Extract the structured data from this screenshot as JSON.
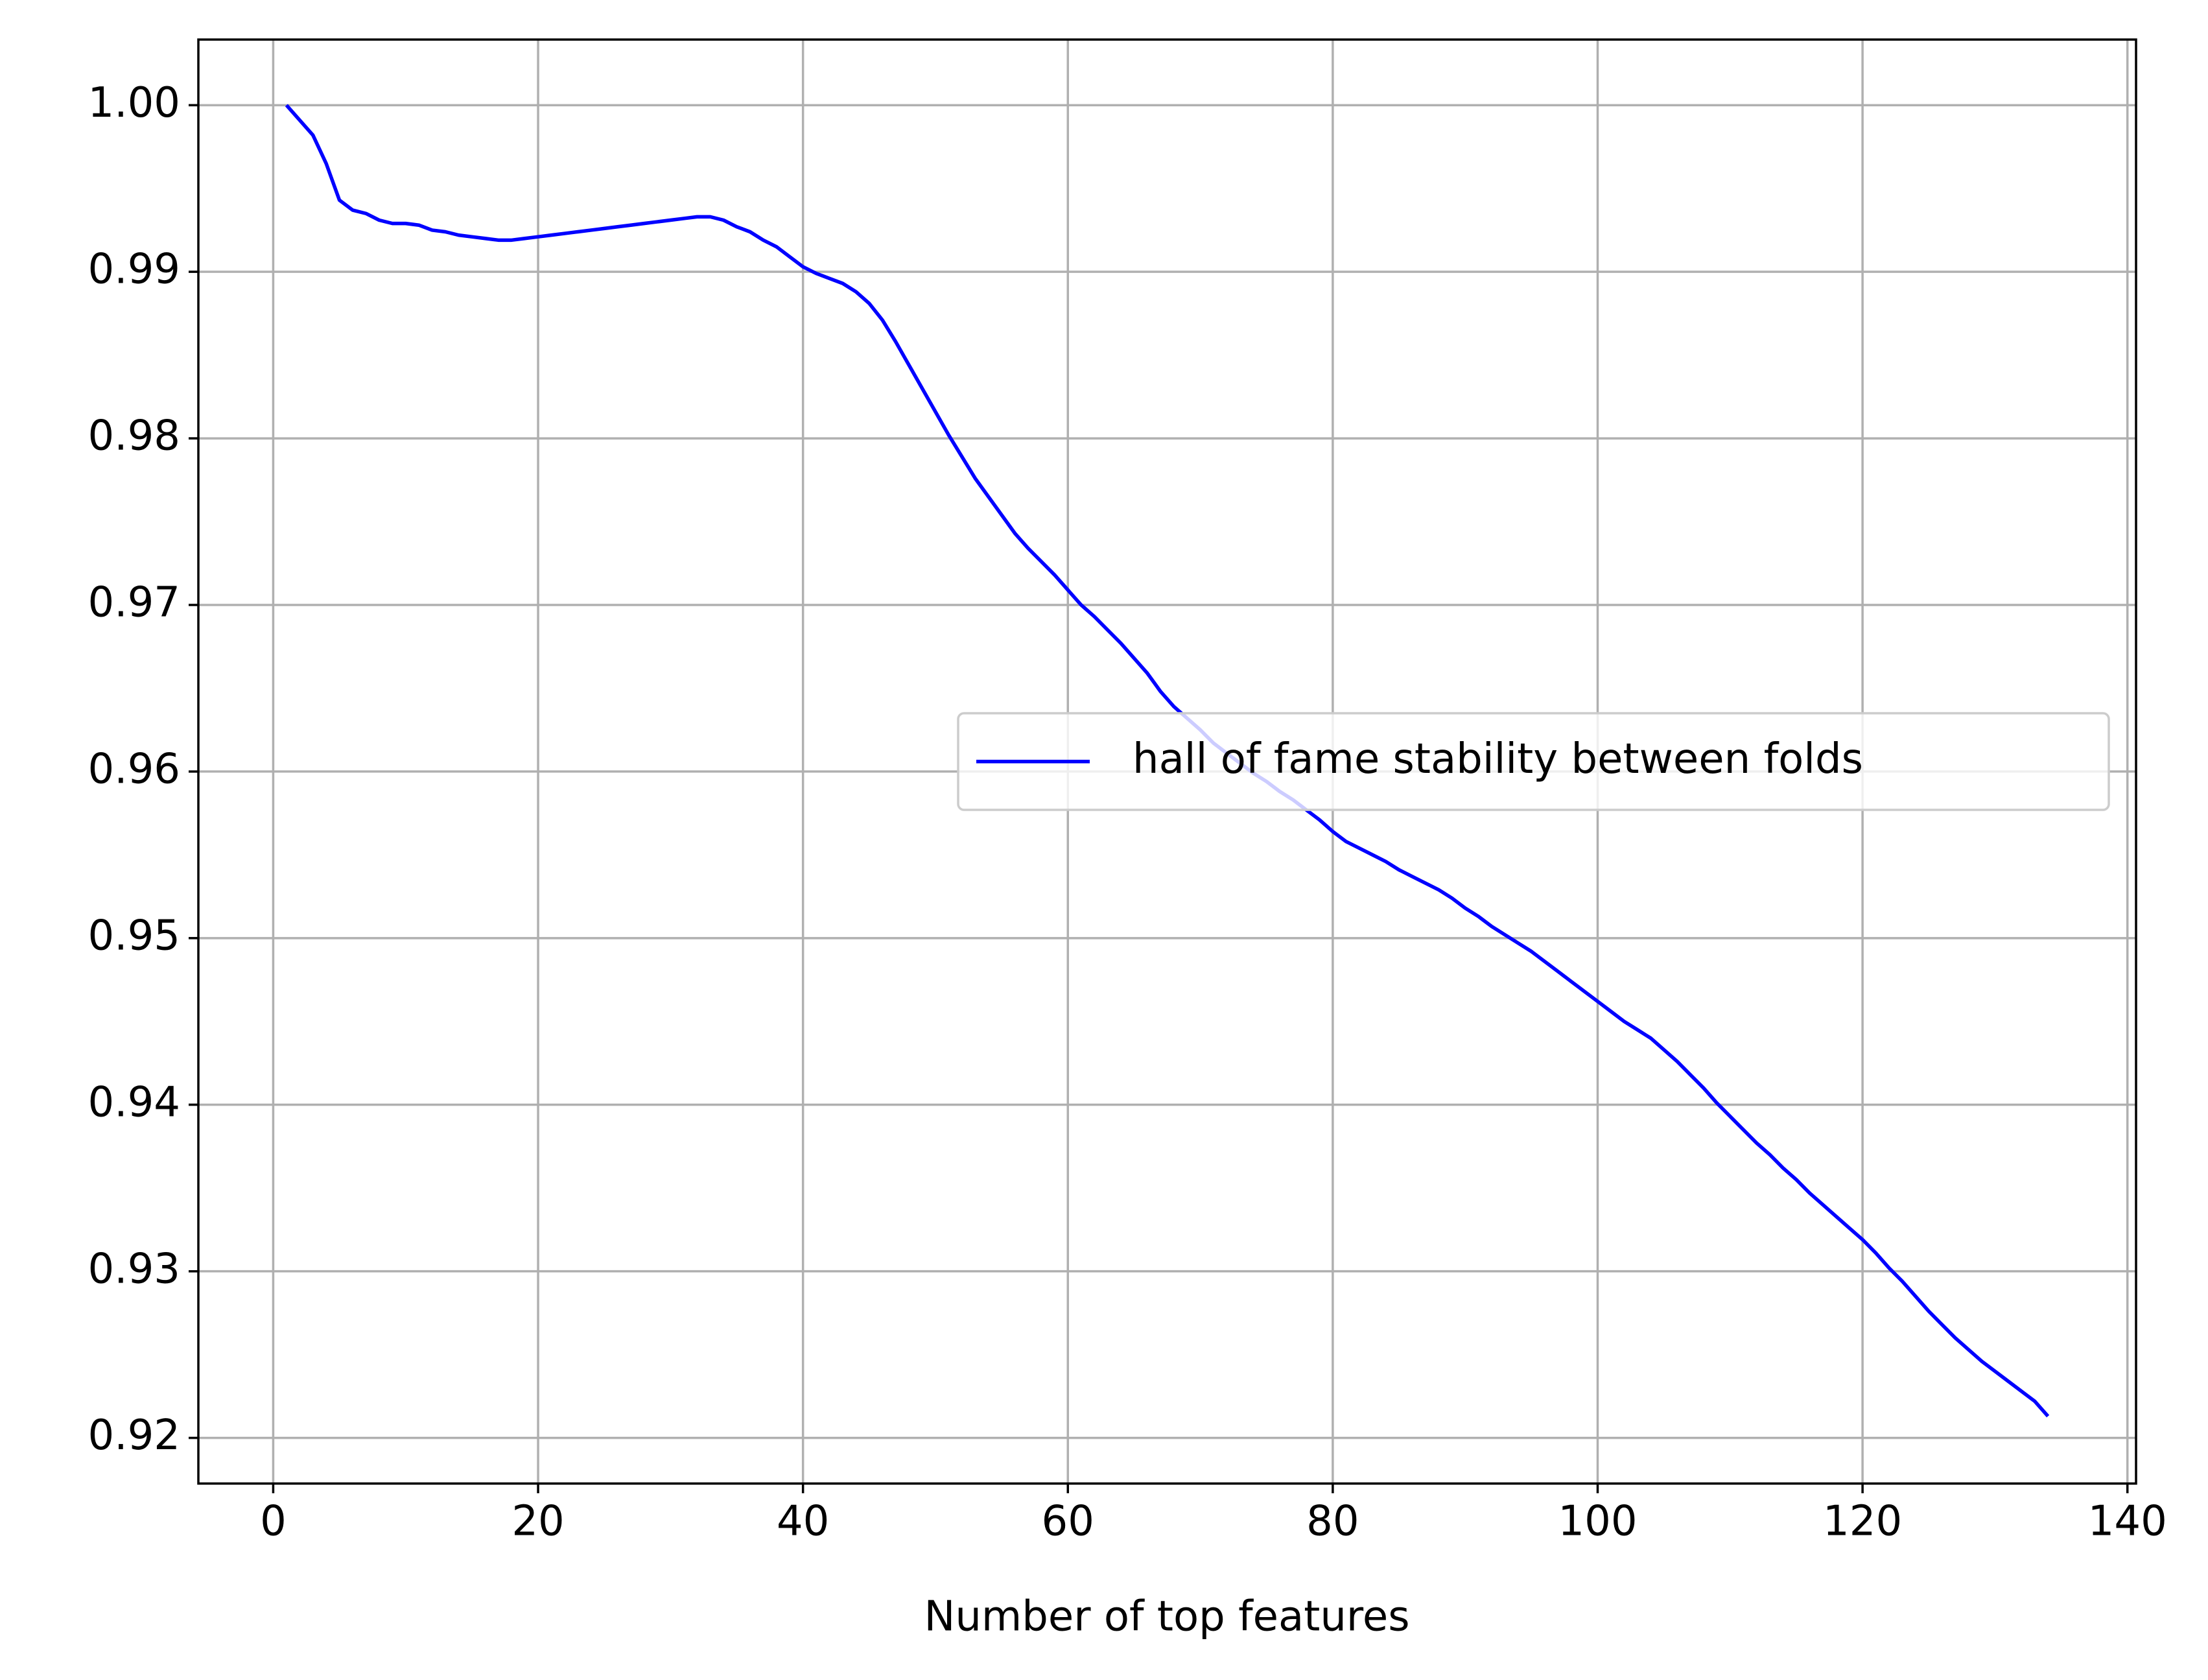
{
  "chart_data": {
    "type": "line",
    "xlabel": "Number of top features",
    "x": [
      1,
      2,
      3,
      4,
      5,
      6,
      7,
      8,
      9,
      10,
      11,
      12,
      13,
      14,
      15,
      16,
      17,
      18,
      19,
      20,
      21,
      22,
      23,
      24,
      25,
      26,
      27,
      28,
      29,
      30,
      31,
      32,
      33,
      34,
      35,
      36,
      37,
      38,
      39,
      40,
      41,
      42,
      43,
      44,
      45,
      46,
      47,
      48,
      49,
      50,
      51,
      52,
      53,
      54,
      55,
      56,
      57,
      58,
      59,
      60,
      61,
      62,
      63,
      64,
      65,
      66,
      67,
      68,
      69,
      70,
      71,
      72,
      73,
      74,
      75,
      76,
      77,
      78,
      79,
      80,
      81,
      82,
      83,
      84,
      85,
      86,
      87,
      88,
      89,
      90,
      91,
      92,
      93,
      94,
      95,
      96,
      97,
      98,
      99,
      100,
      101,
      102,
      103,
      104,
      105,
      106,
      107,
      108,
      109,
      110,
      111,
      112,
      113,
      114,
      115,
      116,
      117,
      118,
      119,
      120,
      121,
      122,
      123,
      124,
      125,
      126,
      127,
      128,
      129,
      130,
      131,
      132,
      133,
      134
    ],
    "series": [
      {
        "name": "hall of fame stability between folds",
        "color": "#0000ff",
        "values": [
          1.0,
          0.9991,
          0.9982,
          0.9965,
          0.9943,
          0.9937,
          0.9935,
          0.9931,
          0.9929,
          0.9929,
          0.9928,
          0.9925,
          0.9924,
          0.9922,
          0.9921,
          0.992,
          0.9919,
          0.9919,
          0.992,
          0.9921,
          0.9922,
          0.9923,
          0.9924,
          0.9925,
          0.9926,
          0.9927,
          0.9928,
          0.9929,
          0.993,
          0.9931,
          0.9932,
          0.9933,
          0.9933,
          0.9931,
          0.9927,
          0.9924,
          0.9919,
          0.9915,
          0.9909,
          0.9903,
          0.9899,
          0.9896,
          0.9893,
          0.9888,
          0.9881,
          0.9871,
          0.9858,
          0.9844,
          0.983,
          0.9816,
          0.9802,
          0.9789,
          0.9776,
          0.9765,
          0.9754,
          0.9743,
          0.9734,
          0.9726,
          0.9718,
          0.9709,
          0.97,
          0.9693,
          0.9685,
          0.9677,
          0.9668,
          0.9659,
          0.9648,
          0.9639,
          0.9632,
          0.9625,
          0.9617,
          0.9611,
          0.9605,
          0.9599,
          0.9594,
          0.9588,
          0.9583,
          0.9577,
          0.9571,
          0.9564,
          0.9558,
          0.9554,
          0.955,
          0.9546,
          0.9541,
          0.9537,
          0.9533,
          0.9529,
          0.9524,
          0.9518,
          0.9513,
          0.9507,
          0.9502,
          0.9497,
          0.9492,
          0.9486,
          0.948,
          0.9474,
          0.9468,
          0.9462,
          0.9456,
          0.945,
          0.9445,
          0.944,
          0.9433,
          0.9426,
          0.9418,
          0.941,
          0.9401,
          0.9393,
          0.9385,
          0.9377,
          0.937,
          0.9362,
          0.9355,
          0.9347,
          0.934,
          0.9333,
          0.9326,
          0.9319,
          0.9311,
          0.9302,
          0.9294,
          0.9285,
          0.9276,
          0.9268,
          0.926,
          0.9253,
          0.9246,
          0.924,
          0.9234,
          0.9228,
          0.9222,
          0.9213
        ]
      }
    ],
    "xlim": [
      -5.65,
      140.65
    ],
    "xticks": [
      0,
      20,
      40,
      60,
      80,
      100,
      120,
      140
    ],
    "ylim": [
      0.91726,
      1.00394
    ],
    "yticks": [
      0.92,
      0.93,
      0.94,
      0.95,
      0.96,
      0.97,
      0.98,
      0.99,
      {
        "value": 1.0,
        "label": "1.00"
      }
    ],
    "grid": true,
    "legend_loc": "center right"
  }
}
